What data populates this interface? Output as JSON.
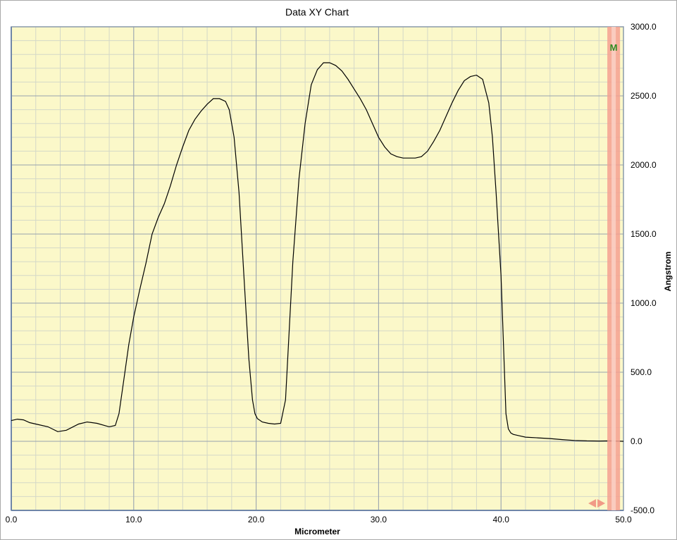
{
  "chart_data": {
    "type": "line",
    "title": "Data XY Chart",
    "xlabel": "Micrometer",
    "ylabel": "Angstrom",
    "xlim": [
      0,
      50
    ],
    "ylim": [
      -500,
      3000
    ],
    "x_ticks": [
      "0.0",
      "10.0",
      "20.0",
      "30.0",
      "40.0",
      "50.0"
    ],
    "y_ticks": [
      "3000.0",
      "2500.0",
      "2000.0",
      "1500.0",
      "1000.0",
      "500.0",
      "0.0",
      "-500.0"
    ],
    "grid": true,
    "background_color": "#fbf8c9",
    "line_color": "#000000",
    "marker": {
      "label": "M",
      "x": 49.2,
      "color": "#f4a090"
    },
    "series": [
      {
        "x": [
          0.0,
          0.5,
          1.0,
          1.5,
          2.0,
          3.0,
          3.8,
          4.5,
          5.5,
          6.2,
          7.0,
          8.0,
          8.5,
          8.8,
          9.2,
          9.6,
          10.0,
          10.5,
          11.0,
          11.5,
          12.0,
          12.5,
          13.0,
          13.5,
          14.0,
          14.5,
          15.0,
          15.5,
          16.0,
          16.5,
          17.0,
          17.5,
          17.8,
          18.2,
          18.6,
          19.0,
          19.4,
          19.7,
          19.9,
          20.1,
          20.5,
          21.0,
          21.5,
          22.0,
          22.4,
          22.7,
          23.0,
          23.5,
          24.0,
          24.5,
          25.0,
          25.5,
          26.0,
          26.5,
          27.0,
          27.5,
          28.0,
          28.5,
          29.0,
          29.5,
          30.0,
          30.5,
          31.0,
          31.5,
          32.0,
          32.5,
          33.0,
          33.5,
          34.0,
          34.5,
          35.0,
          35.5,
          36.0,
          36.5,
          37.0,
          37.5,
          38.0,
          38.5,
          39.0,
          39.3,
          39.6,
          40.0,
          40.2,
          40.4,
          40.6,
          40.8,
          41.0,
          41.5,
          42.0,
          43.0,
          44.0,
          45.0,
          46.0,
          47.0,
          48.0,
          49.0,
          50.0
        ],
        "y": [
          150,
          160,
          155,
          135,
          125,
          105,
          70,
          80,
          125,
          140,
          130,
          105,
          115,
          200,
          450,
          700,
          900,
          1100,
          1290,
          1500,
          1620,
          1720,
          1850,
          2000,
          2130,
          2250,
          2330,
          2390,
          2440,
          2480,
          2480,
          2460,
          2400,
          2200,
          1800,
          1200,
          600,
          300,
          200,
          165,
          140,
          130,
          125,
          130,
          300,
          800,
          1300,
          1900,
          2300,
          2580,
          2690,
          2740,
          2740,
          2720,
          2680,
          2620,
          2550,
          2480,
          2400,
          2300,
          2200,
          2130,
          2080,
          2060,
          2050,
          2050,
          2050,
          2060,
          2100,
          2170,
          2250,
          2350,
          2450,
          2540,
          2610,
          2640,
          2650,
          2620,
          2450,
          2200,
          1800,
          1200,
          700,
          200,
          90,
          60,
          50,
          40,
          30,
          25,
          20,
          12,
          6,
          3,
          2,
          3,
          0
        ]
      }
    ]
  }
}
